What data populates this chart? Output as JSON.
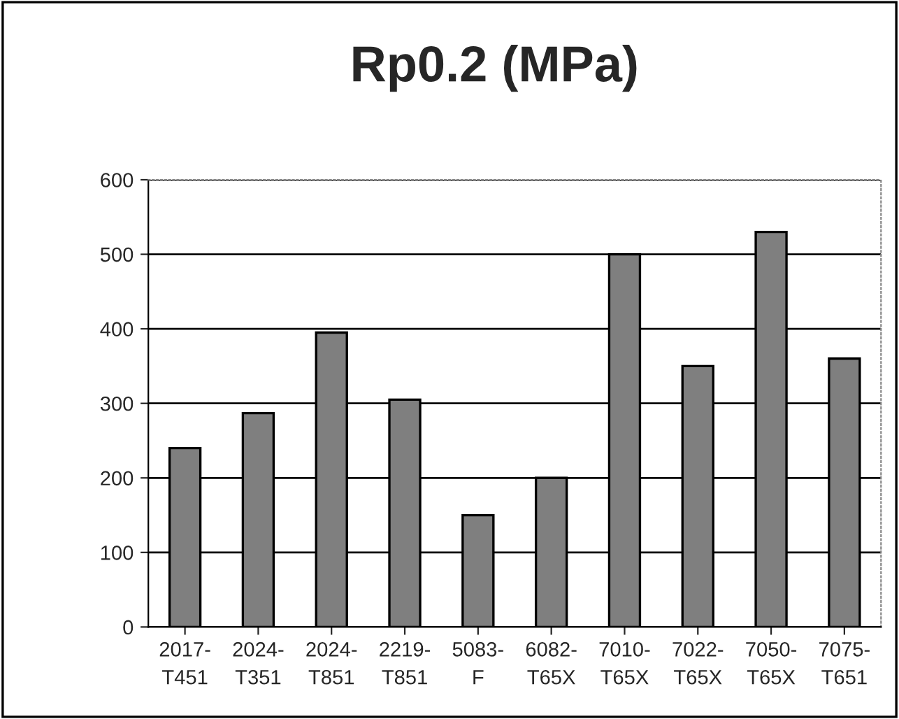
{
  "chart_data": {
    "type": "bar",
    "title": "Rp0.2 (MPa)",
    "categories": [
      "2017-\nT451",
      "2024-\nT351",
      "2024-\nT851",
      "2219-\nT851",
      "5083-\nF",
      "6082-\nT65X",
      "7010-\nT65X",
      "7022-\nT65X",
      "7050-\nT65X",
      "7075-\nT651"
    ],
    "values": [
      240,
      287,
      395,
      305,
      150,
      200,
      500,
      350,
      530,
      360
    ],
    "color": "#7f7f7f",
    "ylim": [
      0,
      600
    ],
    "yticks": [
      0,
      100,
      200,
      300,
      400,
      500,
      600
    ],
    "grid": "y"
  }
}
